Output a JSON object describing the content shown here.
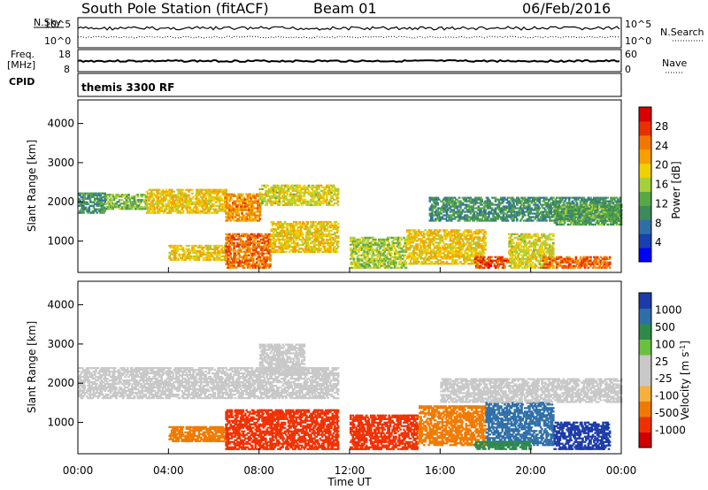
{
  "header": {
    "station": "South Pole Station (fitACF)",
    "beam": "Beam 01",
    "date": "06/Feb/2016"
  },
  "left_labels": {
    "nsky": "N.Sky",
    "freq": "Freq.",
    "mhz": "[MHz]",
    "cpid": "CPID"
  },
  "right_labels": {
    "nsearch": "N.Search",
    "nave": "Nave"
  },
  "strip_ticks": {
    "noise_top": "10^5",
    "noise_bottom": "10^0",
    "freq_top": "18",
    "freq_bottom": "8",
    "nave_top": "60",
    "nave_bottom": "0"
  },
  "cpid_text": "themis 3300 RF",
  "colors": {
    "power_scale": [
      "#0000ff",
      "#1a3fb0",
      "#2f6fa8",
      "#3d8a5a",
      "#5aa845",
      "#a6cf3a",
      "#f0d000",
      "#f5a000",
      "#f07800",
      "#e83000",
      "#d80000"
    ],
    "velocity_scale": [
      "#d00000",
      "#f03000",
      "#f07a00",
      "#f5b040",
      "#c8c8c8",
      "#c8c8c8",
      "#6ac040",
      "#2e8a4a",
      "#2f6fa8",
      "#1c3aa8"
    ]
  },
  "chart_data": [
    {
      "type": "heatmap",
      "name": "power",
      "ylabel": "Slant Range [km]",
      "yticks": [
        "1000",
        "2000",
        "3000",
        "4000"
      ],
      "ylim": [
        200,
        4600
      ],
      "xlim": [
        0,
        24
      ],
      "colorbar_label": "Power [dB]",
      "colorbar_ticks": [
        "4",
        "8",
        "12",
        "16",
        "20",
        "24",
        "28"
      ],
      "colorbar_range": [
        0,
        32
      ],
      "bands": [
        {
          "t0": 0.0,
          "t1": 1.2,
          "r0": 1700,
          "r1": 2200,
          "v": 10
        },
        {
          "t0": 1.2,
          "t1": 3.0,
          "r0": 1800,
          "r1": 2200,
          "v": 14
        },
        {
          "t0": 3.0,
          "t1": 6.5,
          "r0": 1700,
          "r1": 2300,
          "v": 20
        },
        {
          "t0": 6.5,
          "t1": 8.0,
          "r0": 1500,
          "r1": 2200,
          "v": 24
        },
        {
          "t0": 8.0,
          "t1": 11.5,
          "r0": 1900,
          "r1": 2400,
          "v": 18
        },
        {
          "t0": 4.0,
          "t1": 6.5,
          "r0": 500,
          "r1": 900,
          "v": 20
        },
        {
          "t0": 6.5,
          "t1": 8.5,
          "r0": 300,
          "r1": 1200,
          "v": 26
        },
        {
          "t0": 8.5,
          "t1": 11.5,
          "r0": 700,
          "r1": 1500,
          "v": 20
        },
        {
          "t0": 12.0,
          "t1": 14.5,
          "r0": 300,
          "r1": 1100,
          "v": 16
        },
        {
          "t0": 14.5,
          "t1": 18.0,
          "r0": 400,
          "r1": 1300,
          "v": 20
        },
        {
          "t0": 17.5,
          "t1": 19.0,
          "r0": 300,
          "r1": 600,
          "v": 28
        },
        {
          "t0": 19.0,
          "t1": 21.0,
          "r0": 300,
          "r1": 1200,
          "v": 18
        },
        {
          "t0": 20.5,
          "t1": 23.5,
          "r0": 300,
          "r1": 600,
          "v": 26
        },
        {
          "t0": 15.5,
          "t1": 24.0,
          "r0": 1500,
          "r1": 2100,
          "v": 10
        },
        {
          "t0": 21.0,
          "t1": 24.0,
          "r0": 1400,
          "r1": 1900,
          "v": 12
        }
      ]
    },
    {
      "type": "heatmap",
      "name": "velocity",
      "ylabel": "Slant Range [km]",
      "yticks": [
        "1000",
        "2000",
        "3000",
        "4000"
      ],
      "ylim": [
        200,
        4600
      ],
      "xlim": [
        0,
        24
      ],
      "xlabel": "Time UT",
      "xticks": [
        "00:00",
        "04:00",
        "08:00",
        "12:00",
        "16:00",
        "20:00",
        "00:00"
      ],
      "colorbar_label": "Velocity [m s^-1]",
      "colorbar_ticks": [
        "-1000",
        "-500",
        "-100",
        "-25",
        "25",
        "100",
        "500",
        "1000"
      ],
      "bands": [
        {
          "t0": 0.0,
          "t1": 11.5,
          "r0": 1600,
          "r1": 2400,
          "v": 0
        },
        {
          "t0": 8.0,
          "t1": 10.0,
          "r0": 2200,
          "r1": 3000,
          "v": 0
        },
        {
          "t0": 4.0,
          "t1": 6.5,
          "r0": 500,
          "r1": 900,
          "v": -150
        },
        {
          "t0": 6.5,
          "t1": 11.5,
          "r0": 300,
          "r1": 1300,
          "v": -300
        },
        {
          "t0": 12.0,
          "t1": 15.0,
          "r0": 300,
          "r1": 1200,
          "v": -400
        },
        {
          "t0": 15.0,
          "t1": 18.0,
          "r0": 400,
          "r1": 1400,
          "v": -200
        },
        {
          "t0": 18.0,
          "t1": 21.0,
          "r0": 400,
          "r1": 1500,
          "v": 600
        },
        {
          "t0": 21.0,
          "t1": 23.5,
          "r0": 300,
          "r1": 1000,
          "v": 800
        },
        {
          "t0": 17.5,
          "t1": 20.0,
          "r0": 300,
          "r1": 500,
          "v": 150
        },
        {
          "t0": 16.0,
          "t1": 24.0,
          "r0": 1500,
          "r1": 2100,
          "v": 0
        }
      ]
    }
  ]
}
